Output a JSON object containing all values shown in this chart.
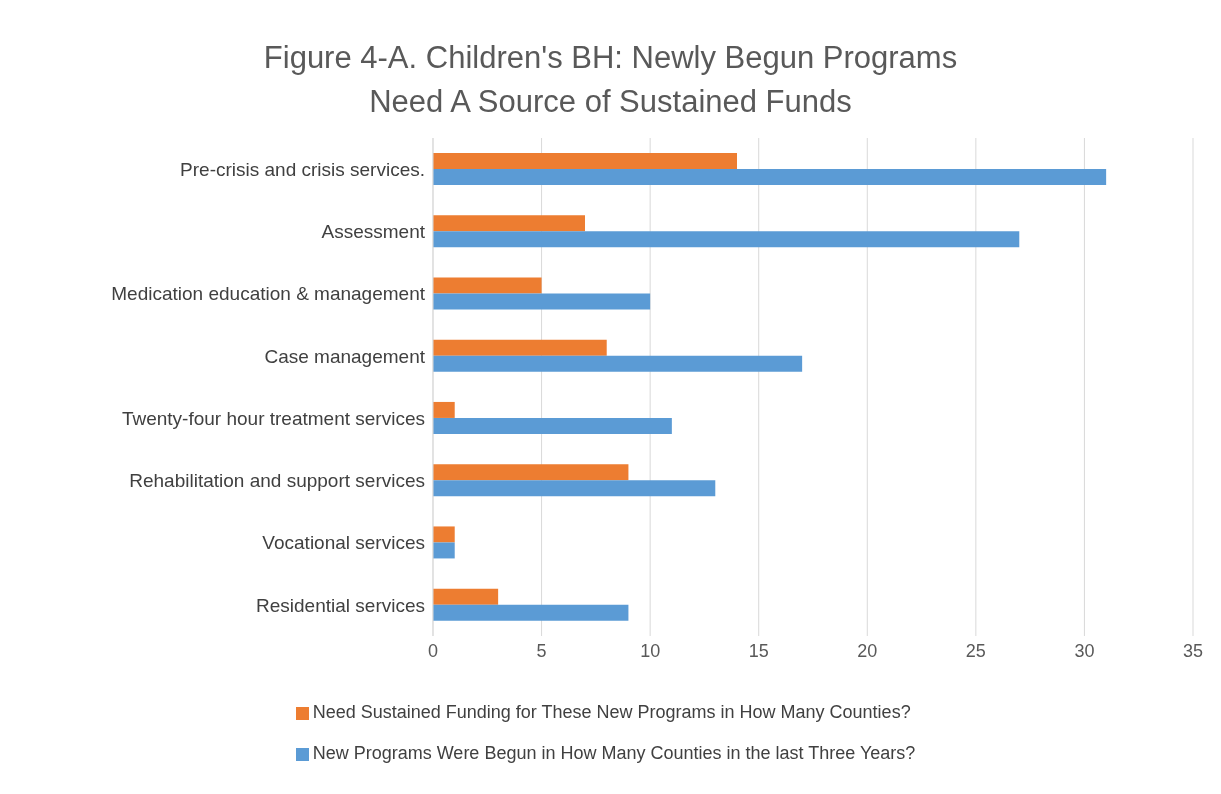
{
  "chart_data": {
    "type": "bar",
    "orientation": "horizontal",
    "title": "Figure 4-A. Children's BH: Newly Begun Programs Need A Source of Sustained Funds",
    "categories": [
      "Pre-crisis and crisis services.",
      "Assessment",
      "Medication education & management",
      "Case management",
      "Twenty-four hour treatment services",
      "Rehabilitation and support services",
      "Vocational services",
      "Residential services"
    ],
    "series": [
      {
        "name": "Need Sustained Funding for These New Programs in How Many Counties?",
        "color": "#ed7d31",
        "values": [
          14,
          7,
          5,
          8,
          1,
          9,
          1,
          3
        ]
      },
      {
        "name": "New Programs Were Begun in How Many Counties in the last Three Years?",
        "color": "#5b9bd5",
        "values": [
          31,
          27,
          10,
          17,
          11,
          13,
          1,
          9
        ]
      }
    ],
    "xlim": [
      0,
      35
    ],
    "xticks": [
      0,
      5,
      10,
      15,
      20,
      25,
      30,
      35
    ],
    "grid": "x",
    "legend": "bottom"
  }
}
